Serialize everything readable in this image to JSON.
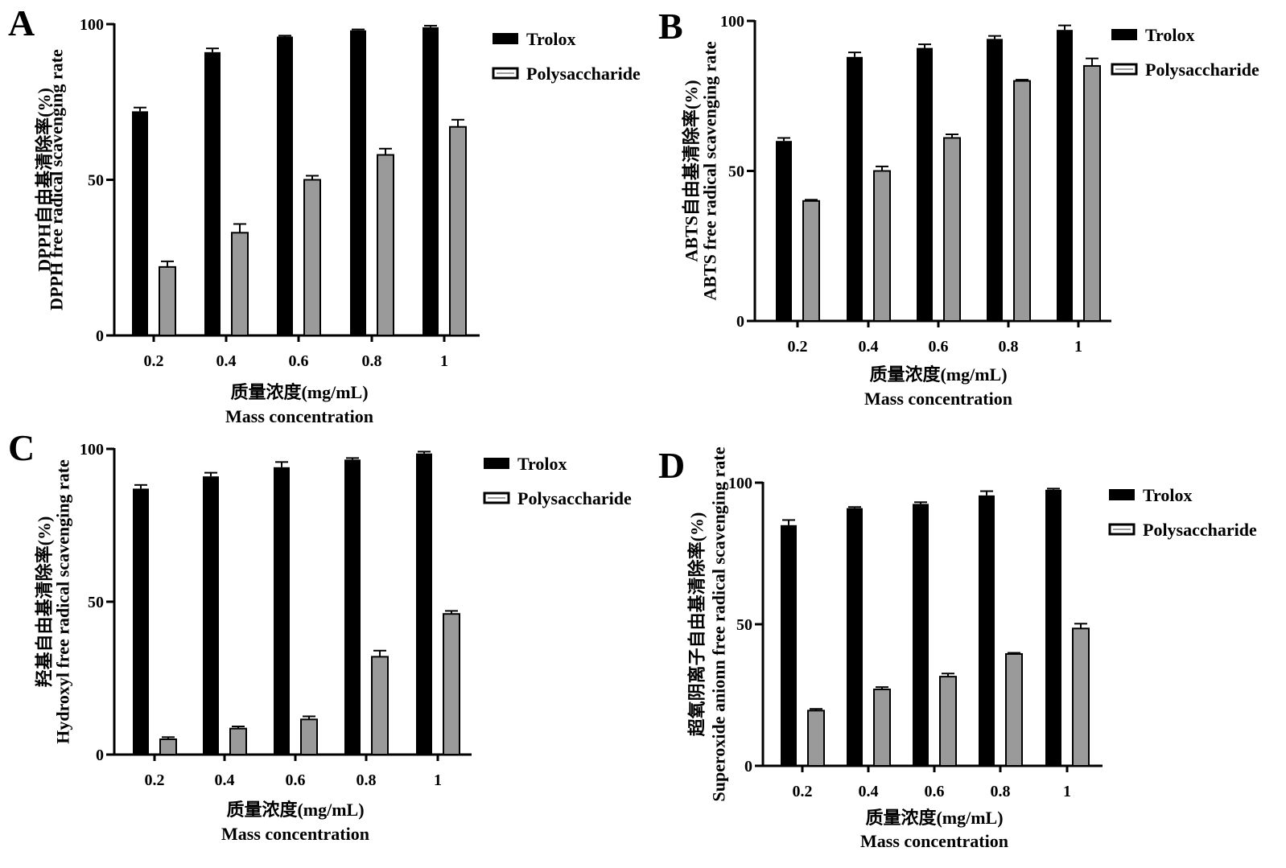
{
  "colors": {
    "trolox": "#000000",
    "polysaccharide": "#9a9a9a",
    "axis": "#000000"
  },
  "chart_data": [
    {
      "panel": "A",
      "type": "bar",
      "categories": [
        "0.2",
        "0.4",
        "0.6",
        "0.8",
        "1"
      ],
      "series": [
        {
          "name": "Trolox",
          "values": [
            72,
            91,
            96,
            98,
            99
          ],
          "errors": [
            1.2,
            1.2,
            0.3,
            0.3,
            0.5
          ]
        },
        {
          "name": "Polysaccharide",
          "values": [
            22,
            33,
            50,
            58,
            67
          ],
          "errors": [
            1.8,
            2.8,
            1.3,
            2.0,
            2.3
          ]
        }
      ],
      "ylim": [
        0,
        100
      ],
      "yticks": [
        "0",
        "50",
        "100"
      ],
      "ylabel_cn": "DPPH自由基清除率(%)",
      "ylabel_en": "DPPH free radical scavenging rate",
      "xlabel_cn": "质量浓度(mg/mL)",
      "xlabel_en": "Mass concentration",
      "legend": [
        "Trolox",
        "Polysaccharide"
      ],
      "legend_position": "top-right"
    },
    {
      "panel": "B",
      "type": "bar",
      "categories": [
        "0.2",
        "0.4",
        "0.6",
        "0.8",
        "1"
      ],
      "series": [
        {
          "name": "Trolox",
          "values": [
            60,
            88,
            91,
            94,
            97
          ],
          "errors": [
            1.0,
            1.5,
            1.2,
            1.0,
            1.5
          ]
        },
        {
          "name": "Polysaccharide",
          "values": [
            40,
            50,
            61,
            80,
            85
          ],
          "errors": [
            0.4,
            1.5,
            1.2,
            0.4,
            2.5
          ]
        }
      ],
      "ylim": [
        0,
        100
      ],
      "yticks": [
        "0",
        "50",
        "100"
      ],
      "ylabel_cn": "ABTS自由基清除率(%)",
      "ylabel_en": "ABTS free radical scavenging rate",
      "xlabel_cn": "质量浓度(mg/mL)",
      "xlabel_en": "Mass concentration",
      "legend": [
        "Trolox",
        "Polysaccharide"
      ],
      "legend_position": "top-right"
    },
    {
      "panel": "C",
      "type": "bar",
      "categories": [
        "0.2",
        "0.4",
        "0.6",
        "0.8",
        "1"
      ],
      "series": [
        {
          "name": "Trolox",
          "values": [
            87,
            91,
            94,
            96.5,
            98.5
          ],
          "errors": [
            1.2,
            1.2,
            1.7,
            0.5,
            0.6
          ]
        },
        {
          "name": "Polysaccharide",
          "values": [
            5,
            8.5,
            11.5,
            32,
            46
          ],
          "errors": [
            0.7,
            0.7,
            1.0,
            2.0,
            1.0
          ]
        }
      ],
      "ylim": [
        0,
        100
      ],
      "yticks": [
        "0",
        "50",
        "100"
      ],
      "ylabel_cn": "羟基自由基清除率(%)",
      "ylabel_en": "Hydroxyl free radical scavenging rate",
      "xlabel_cn": "质量浓度(mg/mL)",
      "xlabel_en": "Mass concentration",
      "legend": [
        "Trolox",
        "Polysaccharide"
      ],
      "legend_position": "top-right"
    },
    {
      "panel": "D",
      "type": "bar",
      "categories": [
        "0.2",
        "0.4",
        "0.6",
        "0.8",
        "1"
      ],
      "series": [
        {
          "name": "Trolox",
          "values": [
            85,
            91,
            92.5,
            95.5,
            97.5
          ],
          "errors": [
            1.8,
            0.4,
            0.6,
            1.5,
            0.4
          ]
        },
        {
          "name": "Polysaccharide",
          "values": [
            19.5,
            27,
            31.5,
            39.5,
            48.5
          ],
          "errors": [
            0.6,
            0.8,
            1.1,
            0.4,
            1.7
          ]
        }
      ],
      "ylim": [
        0,
        100
      ],
      "yticks": [
        "0",
        "50",
        "100"
      ],
      "ylabel_cn": "超氧阴离子自由基清除率(%)",
      "ylabel_en": "Superoxide anionn free radical scavenging rate",
      "xlabel_cn": "质量浓度(mg/mL)",
      "xlabel_en": "Mass concentration",
      "legend": [
        "Trolox",
        "Polysaccharide"
      ],
      "legend_position": "top-right"
    }
  ]
}
